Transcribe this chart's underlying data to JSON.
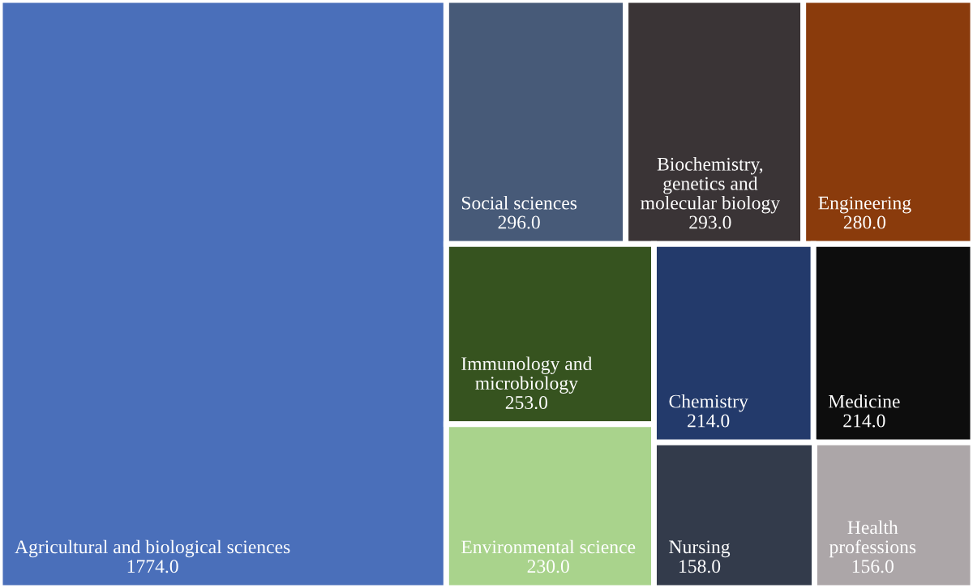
{
  "chart_data": {
    "type": "other",
    "categories": [
      "Agricultural and biological sciences",
      "Social sciences",
      "Biochemistry, genetics and molecular biology",
      "Engineering",
      "Immunology and microbiology",
      "Environmental science",
      "Chemistry",
      "Medicine",
      "Nursing",
      "Health professions"
    ],
    "values": [
      1774.0,
      296.0,
      293.0,
      280.0,
      253.0,
      230.0,
      214.0,
      214.0,
      158.0,
      156.0
    ],
    "value_labels": [
      "1774.0",
      "296.0",
      "293.0",
      "280.0",
      "253.0",
      "230.0",
      "214.0",
      "214.0",
      "158.0",
      "156.0"
    ],
    "colors": [
      "#4a6fba",
      "#475a78",
      "#3a3436",
      "#8a3b0c",
      "#36531f",
      "#a9d38c",
      "#233a6b",
      "#0d0d0d",
      "#333b4b",
      "#aca6a8"
    ]
  }
}
